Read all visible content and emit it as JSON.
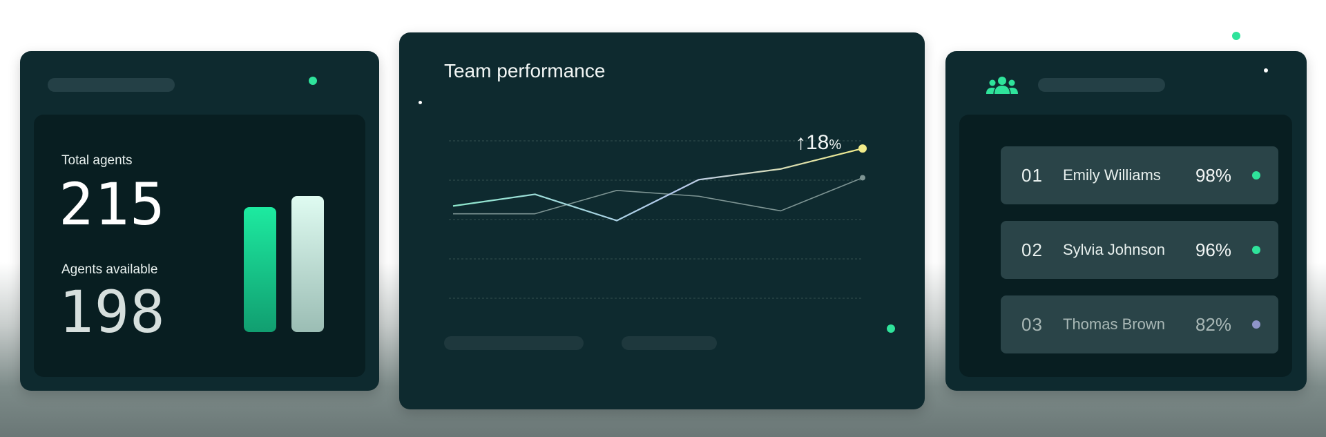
{
  "agents_card": {
    "total_label": "Total agents",
    "total_value": "215",
    "available_label": "Agents available",
    "available_value": "198",
    "bars": [
      {
        "name": "agents-available-bar",
        "value": 198,
        "color_top": "#1deaa0",
        "color_bottom": "#119e70"
      },
      {
        "name": "total-agents-bar",
        "value": 215,
        "color_top": "#dffbf1",
        "color_bottom": "#9bbdb4"
      }
    ]
  },
  "performance_card": {
    "title": "Team performance",
    "change_arrow": "↑",
    "change_value": "18",
    "change_unit": "%"
  },
  "chart_data": {
    "type": "line",
    "title": "Team performance",
    "x": [
      0,
      1,
      2,
      3,
      4,
      5
    ],
    "ylim": [
      0,
      100
    ],
    "grid": true,
    "annotation": "↑18%",
    "series": [
      {
        "values": [
          38,
          50,
          23,
          65,
          76,
          97
        ],
        "color": "#8ee8cc",
        "end_color": "#f2ec8a"
      },
      {
        "values": [
          30,
          30,
          54,
          48,
          33,
          67
        ],
        "color": "#7e9594"
      }
    ]
  },
  "team_card": {
    "icon": "team-icon",
    "rows": [
      {
        "rank": "01",
        "name": "Emily Williams",
        "score": "98%",
        "status_color": "#2fe39b"
      },
      {
        "rank": "02",
        "name": "Sylvia Johnson",
        "score": "96%",
        "status_color": "#2fe39b"
      },
      {
        "rank": "03",
        "name": "Thomas Brown",
        "score": "82%",
        "status_color": "#8e95c9"
      }
    ]
  },
  "colors": {
    "accent": "#2fe39b",
    "card_bg": "#0e2a2f",
    "inner_bg": "#081e21"
  }
}
